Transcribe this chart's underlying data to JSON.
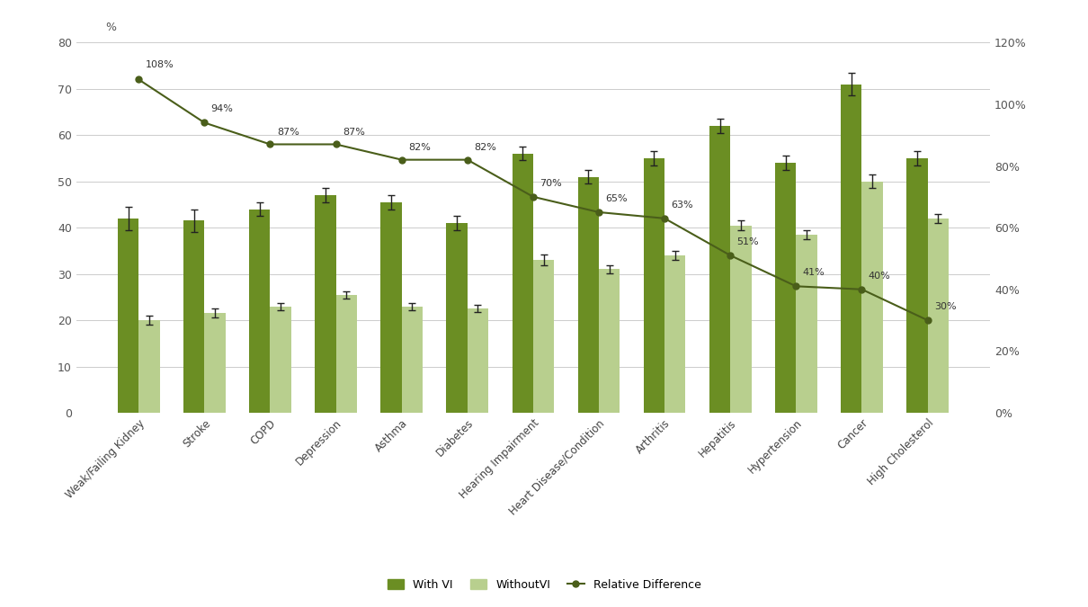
{
  "categories": [
    "Weak/Failing Kidney",
    "Stroke",
    "COPD",
    "Depression",
    "Asthma",
    "Diabetes",
    "Hearing Impairment",
    "Heart Disease/Condition",
    "Arthritis",
    "Hepatitis",
    "Hypertension",
    "Cancer",
    "High Cholesterol"
  ],
  "with_vi": [
    42,
    41.5,
    44,
    47,
    45.5,
    41,
    56,
    51,
    55,
    62,
    54,
    71,
    55
  ],
  "without_vi": [
    20,
    21.5,
    23,
    25.5,
    23,
    22.5,
    33,
    31,
    34,
    40.5,
    38.5,
    50,
    42
  ],
  "with_vi_err": [
    2.5,
    2.5,
    1.5,
    1.5,
    1.5,
    1.5,
    1.5,
    1.5,
    1.5,
    1.5,
    1.5,
    2.5,
    1.5
  ],
  "without_vi_err": [
    1.0,
    1.0,
    0.8,
    0.8,
    0.8,
    0.8,
    1.2,
    0.8,
    1.0,
    1.0,
    1.0,
    1.5,
    1.0
  ],
  "rel_diff_pct": [
    108,
    94,
    87,
    87,
    82,
    82,
    70,
    65,
    63,
    51,
    41,
    40,
    30
  ],
  "rel_diff_labels": [
    "108%",
    "94%",
    "87%",
    "87%",
    "82%",
    "82%",
    "70%",
    "65%",
    "63%",
    "51%",
    "41%",
    "40%",
    "30%"
  ],
  "bar_color_dark": "#6b8e23",
  "bar_color_light": "#b8cf8e",
  "line_color": "#4a5e1a",
  "background_color": "#ffffff",
  "ylim_left": [
    0,
    80
  ],
  "ylim_right": [
    0,
    120
  ],
  "yticks_left": [
    0,
    10,
    20,
    30,
    40,
    50,
    60,
    70,
    80
  ],
  "yticks_right_vals": [
    0,
    20,
    40,
    60,
    80,
    100,
    120
  ],
  "yticks_right_labels": [
    "0%",
    "20%",
    "40%",
    "60%",
    "80%",
    "100%",
    "120%"
  ],
  "grid_color": "#cccccc",
  "rel_diff_label_offsets_x": [
    0.1,
    0.1,
    0.1,
    0.1,
    0.1,
    0.1,
    0.1,
    0.1,
    0.1,
    0.1,
    0.1,
    0.1,
    0.1
  ],
  "rel_diff_label_offsets_y": [
    4,
    3.5,
    3,
    3,
    3,
    3,
    3.5,
    3.5,
    3.5,
    3.5,
    3.5,
    3.5,
    3.5
  ]
}
